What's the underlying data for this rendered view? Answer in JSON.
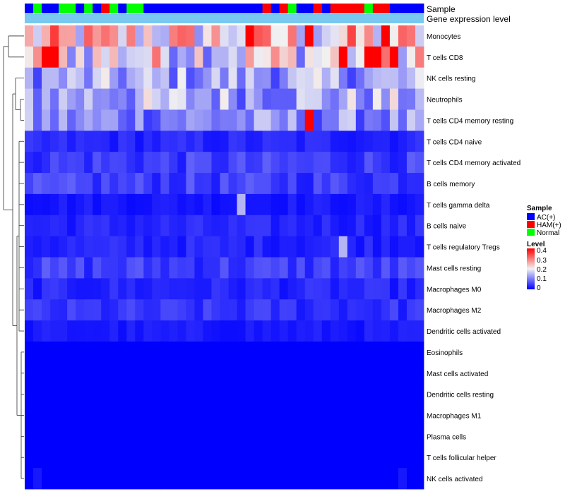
{
  "chart_data": {
    "type": "heatmap",
    "title": "",
    "annotation_tracks": [
      {
        "name": "Sample"
      },
      {
        "name": "Gene expression level"
      }
    ],
    "sample_groups": [
      "AC",
      "Normal",
      "AC",
      "AC",
      "Normal",
      "Normal",
      "AC",
      "Normal",
      "AC",
      "HAM",
      "Normal",
      "AC",
      "Normal",
      "Normal",
      "AC",
      "AC",
      "AC",
      "AC",
      "AC",
      "AC",
      "AC",
      "AC",
      "AC",
      "AC",
      "AC",
      "AC",
      "AC",
      "AC",
      "HAM",
      "AC",
      "HAM",
      "Normal",
      "AC",
      "AC",
      "HAM",
      "AC",
      "HAM",
      "HAM",
      "HAM",
      "HAM",
      "Normal",
      "HAM",
      "HAM",
      "AC",
      "AC",
      "AC",
      "AC"
    ],
    "rows": [
      "Monocytes",
      "T cells CD8",
      "NK cells resting",
      "Neutrophils",
      "T cells CD4 memory resting",
      "T cells CD4 naive",
      "T cells CD4 memory activated",
      "B cells memory",
      "T cells gamma delta",
      "B cells naive",
      "T cells regulatory  Tregs",
      "Mast cells resting",
      "Macrophages M0",
      "Macrophages M2",
      "Dendritic cells activated",
      "Eosinophils",
      "Mast cells activated",
      "Dendritic cells resting",
      "Macrophages M1",
      "Plasma cells",
      "T cells follicular helper",
      "NK cells activated"
    ],
    "row_base_levels": [
      0.22,
      0.2,
      0.13,
      0.14,
      0.11,
      0.03,
      0.05,
      0.05,
      0.02,
      0.03,
      0.03,
      0.05,
      0.03,
      0.04,
      0.02,
      0.0,
      0.0,
      0.0,
      0.0,
      0.0,
      0.0,
      0.0
    ],
    "highlighted_cells": [
      {
        "row": "T cells CD8",
        "col": 2,
        "value": 0.4
      },
      {
        "row": "T cells CD8",
        "col": 3,
        "value": 0.4
      },
      {
        "row": "T cells CD8",
        "col": 37,
        "value": 0.4
      },
      {
        "row": "T cells CD8",
        "col": 40,
        "value": 0.4
      },
      {
        "row": "T cells CD8",
        "col": 41,
        "value": 0.4
      },
      {
        "row": "T cells CD8",
        "col": 43,
        "value": 0.4
      },
      {
        "row": "Monocytes",
        "col": 26,
        "value": 0.4
      },
      {
        "row": "Monocytes",
        "col": 33,
        "value": 0.4
      },
      {
        "row": "Monocytes",
        "col": 42,
        "value": 0.4
      },
      {
        "row": "T cells CD4 memory resting",
        "col": 33,
        "value": 0.4
      },
      {
        "row": "T cells gamma delta",
        "col": 25,
        "value": 0.15
      },
      {
        "row": "T cells regulatory  Tregs",
        "col": 37,
        "value": 0.15
      }
    ],
    "legends": {
      "sample": {
        "title": "Sample",
        "entries": [
          {
            "label": "AC(+)",
            "color": "#0000ff"
          },
          {
            "label": "HAM(+)",
            "color": "#ff0000"
          },
          {
            "label": "Normal",
            "color": "#00ff00"
          }
        ]
      },
      "level": {
        "title": "Level",
        "range": [
          0,
          0.4
        ],
        "tick_labels": [
          "0.4",
          "0.3",
          "0.2",
          "0.1",
          "0"
        ],
        "colors": {
          "low": "#0000ff",
          "mid": "#f2f2f2",
          "high": "#ff0000"
        }
      }
    },
    "track_color": "#78c8f0"
  }
}
